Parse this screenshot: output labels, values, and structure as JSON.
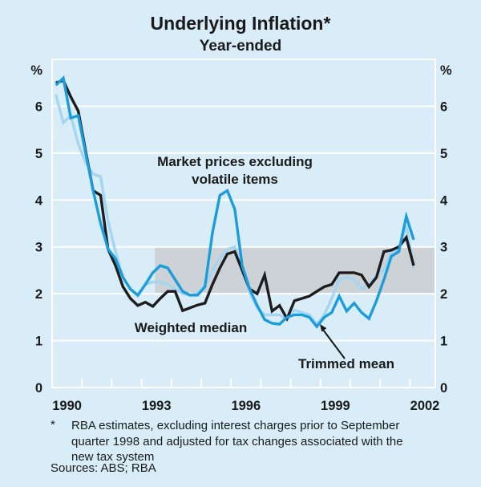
{
  "page": {
    "background": "#d8edf7"
  },
  "header": {
    "title": "Underlying Inflation*",
    "subtitle": "Year-ended"
  },
  "chart_data": {
    "type": "line",
    "title": "Underlying Inflation*",
    "subtitle": "Year-ended",
    "colors": {
      "background": "#d8edf7",
      "grid": "#ffffff",
      "text": "#1a1a1a",
      "band": "#cdd2d7",
      "market_blue": "#1b9ddb",
      "median_black": "#1d1d1f",
      "trimmed_lightblue": "#a5d5f0"
    },
    "y_axis": {
      "label": "%",
      "min": 0,
      "max": 7,
      "ticks": [
        0,
        1,
        2,
        3,
        4,
        5,
        6
      ]
    },
    "x_axis": {
      "start_year": 1990,
      "end_year": 2002.85,
      "tick_years": [
        1991,
        1992,
        1993,
        1994,
        1995,
        1996,
        1997,
        1998,
        1999,
        2000,
        2001,
        2002
      ],
      "label_years": [
        1990,
        1993,
        1996,
        1999,
        2002
      ]
    },
    "target_band": {
      "from": 2,
      "to": 3,
      "start_year": 1993.45,
      "color": "#cdd2d7"
    },
    "x_start": 1990.125,
    "x_step": 0.25,
    "series": [
      {
        "id": "trimmed-mean",
        "name": "Trimmed mean",
        "color": "#a5d5f0",
        "values": [
          6.25,
          5.65,
          5.8,
          5.2,
          4.8,
          4.55,
          4.5,
          3.55,
          2.9,
          2.35,
          2.1,
          1.95,
          2.2,
          2.25,
          2.25,
          2.2,
          2.1,
          2.0,
          1.97,
          2.0,
          2.2,
          2.5,
          2.75,
          2.95,
          3.0,
          2.5,
          2.02,
          1.7,
          1.55,
          1.55,
          1.55,
          1.45,
          1.65,
          1.6,
          1.55,
          1.35,
          1.55,
          1.9,
          2.3,
          2.35,
          2.3,
          2.1,
          2.2,
          2.4,
          2.5,
          2.9,
          2.95,
          3.45,
          2.55
        ]
      },
      {
        "id": "weighted-median",
        "name": "Weighted median",
        "color": "#1d1d1f",
        "values": [
          6.5,
          6.55,
          6.2,
          5.9,
          5.05,
          4.2,
          4.1,
          2.95,
          2.6,
          2.15,
          1.9,
          1.75,
          1.82,
          1.73,
          1.9,
          2.05,
          2.05,
          1.64,
          1.7,
          1.76,
          1.8,
          2.2,
          2.55,
          2.85,
          2.9,
          2.5,
          2.1,
          2.0,
          2.4,
          1.63,
          1.75,
          1.47,
          1.85,
          1.9,
          1.95,
          2.05,
          2.15,
          2.2,
          2.45,
          2.45,
          2.45,
          2.4,
          2.15,
          2.35,
          2.9,
          2.93,
          3.0,
          3.2,
          2.6
        ]
      },
      {
        "id": "market-prices",
        "name": "Market prices excluding volatile items",
        "color": "#1b9ddb",
        "values": [
          6.45,
          6.6,
          5.75,
          5.8,
          5.0,
          4.2,
          3.5,
          2.95,
          2.75,
          2.35,
          2.1,
          1.97,
          2.2,
          2.45,
          2.6,
          2.55,
          2.3,
          2.05,
          1.97,
          1.97,
          2.15,
          3.3,
          4.1,
          4.2,
          3.8,
          2.6,
          2.1,
          1.75,
          1.45,
          1.37,
          1.35,
          1.5,
          1.55,
          1.55,
          1.5,
          1.3,
          1.5,
          1.6,
          1.95,
          1.63,
          1.8,
          1.6,
          1.47,
          1.85,
          2.3,
          2.8,
          2.9,
          3.65,
          3.15
        ]
      }
    ],
    "annotations": [
      {
        "id": "market-label",
        "lines": [
          "Market prices excluding",
          "volatile items"
        ]
      },
      {
        "id": "weighted-label",
        "lines": [
          "Weighted median"
        ]
      },
      {
        "id": "trimmed-label",
        "lines": [
          "Trimmed mean"
        ]
      }
    ],
    "legend_position": "none",
    "grid": true
  },
  "footnote": {
    "marker": "*",
    "lines": [
      "RBA estimates, excluding interest charges prior to September",
      "quarter 1998 and adjusted for tax changes associated with the",
      "new tax system"
    ],
    "sources": "Sources: ABS; RBA"
  }
}
